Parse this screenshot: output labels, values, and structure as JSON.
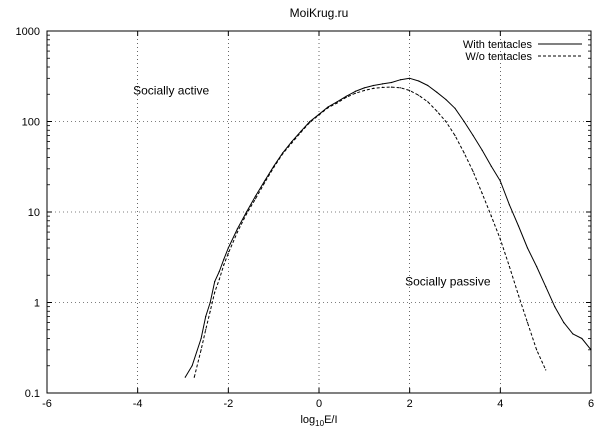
{
  "chart_data": {
    "type": "line",
    "title": "MoiKrug.ru",
    "xlabel": "log10E/I",
    "xlabel_parts": {
      "base": "log",
      "sub": "10",
      "rest": "E/I"
    },
    "ylabel": "",
    "xscale": "linear",
    "yscale": "log",
    "xlim": [
      -6,
      6
    ],
    "ylim": [
      0.1,
      1000
    ],
    "grid": true,
    "grid_style": "dotted",
    "legend_position": "top-right",
    "x_ticks": [
      "-6",
      "-4",
      "-2",
      "0",
      "2",
      "4",
      "6"
    ],
    "y_ticks": [
      "0.1",
      "1",
      "10",
      "100",
      "1000"
    ],
    "annotations": [
      {
        "text": "Socially active",
        "x": -4.1,
        "y": 200
      },
      {
        "text": "Socially passive",
        "x": 1.9,
        "y": 1.55
      }
    ],
    "series": [
      {
        "name": "With tentacles",
        "style": "solid",
        "color": "#000000",
        "points": [
          [
            -2.95,
            0.15
          ],
          [
            -2.8,
            0.2
          ],
          [
            -2.6,
            0.4
          ],
          [
            -2.5,
            0.7
          ],
          [
            -2.4,
            1.0
          ],
          [
            -2.3,
            1.7
          ],
          [
            -2.2,
            2.2
          ],
          [
            -2.1,
            3.0
          ],
          [
            -2.0,
            4.0
          ],
          [
            -1.8,
            6.5
          ],
          [
            -1.6,
            10
          ],
          [
            -1.4,
            15
          ],
          [
            -1.2,
            22
          ],
          [
            -1.0,
            32
          ],
          [
            -0.8,
            45
          ],
          [
            -0.6,
            60
          ],
          [
            -0.4,
            78
          ],
          [
            -0.2,
            100
          ],
          [
            0.0,
            120
          ],
          [
            0.2,
            145
          ],
          [
            0.4,
            165
          ],
          [
            0.6,
            190
          ],
          [
            0.8,
            215
          ],
          [
            1.0,
            235
          ],
          [
            1.2,
            250
          ],
          [
            1.4,
            260
          ],
          [
            1.6,
            270
          ],
          [
            1.8,
            290
          ],
          [
            2.0,
            300
          ],
          [
            2.2,
            280
          ],
          [
            2.4,
            250
          ],
          [
            2.6,
            210
          ],
          [
            2.8,
            175
          ],
          [
            3.0,
            140
          ],
          [
            3.2,
            100
          ],
          [
            3.4,
            70
          ],
          [
            3.6,
            48
          ],
          [
            3.8,
            32
          ],
          [
            4.0,
            22
          ],
          [
            4.2,
            12
          ],
          [
            4.4,
            7
          ],
          [
            4.6,
            4
          ],
          [
            4.8,
            2.5
          ],
          [
            5.0,
            1.5
          ],
          [
            5.2,
            0.9
          ],
          [
            5.4,
            0.6
          ],
          [
            5.6,
            0.45
          ],
          [
            5.8,
            0.4
          ],
          [
            6.0,
            0.3
          ]
        ]
      },
      {
        "name": "W/o tentacles",
        "style": "dashed",
        "color": "#000000",
        "points": [
          [
            -2.75,
            0.15
          ],
          [
            -2.6,
            0.3
          ],
          [
            -2.5,
            0.5
          ],
          [
            -2.4,
            0.8
          ],
          [
            -2.3,
            1.3
          ],
          [
            -2.2,
            1.8
          ],
          [
            -2.1,
            2.6
          ],
          [
            -2.0,
            3.5
          ],
          [
            -1.8,
            6
          ],
          [
            -1.6,
            9.5
          ],
          [
            -1.4,
            14
          ],
          [
            -1.2,
            21
          ],
          [
            -1.0,
            31
          ],
          [
            -0.8,
            44
          ],
          [
            -0.6,
            58
          ],
          [
            -0.4,
            76
          ],
          [
            -0.2,
            98
          ],
          [
            0.0,
            118
          ],
          [
            0.2,
            142
          ],
          [
            0.4,
            160
          ],
          [
            0.6,
            185
          ],
          [
            0.8,
            205
          ],
          [
            1.0,
            220
          ],
          [
            1.2,
            232
          ],
          [
            1.4,
            238
          ],
          [
            1.6,
            240
          ],
          [
            1.8,
            236
          ],
          [
            2.0,
            220
          ],
          [
            2.2,
            195
          ],
          [
            2.4,
            165
          ],
          [
            2.6,
            130
          ],
          [
            2.8,
            100
          ],
          [
            3.0,
            70
          ],
          [
            3.2,
            45
          ],
          [
            3.4,
            28
          ],
          [
            3.6,
            16
          ],
          [
            3.8,
            9
          ],
          [
            4.0,
            5
          ],
          [
            4.2,
            2.5
          ],
          [
            4.4,
            1.2
          ],
          [
            4.6,
            0.6
          ],
          [
            4.8,
            0.3
          ],
          [
            5.0,
            0.18
          ]
        ]
      }
    ]
  }
}
